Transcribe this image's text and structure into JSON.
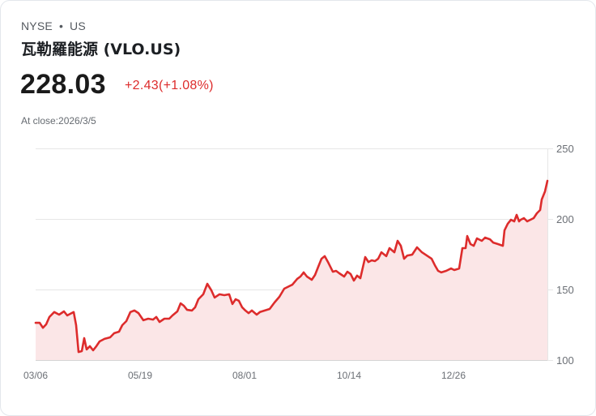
{
  "header": {
    "exchange": "NYSE",
    "separator": "•",
    "market": "US",
    "name": "瓦勒羅能源 (VLO.US)"
  },
  "quote": {
    "price": "228.03",
    "change": "+2.43(+1.08%)",
    "close_label": "At close:2026/3/5"
  },
  "colors": {
    "line": "#dd2c2c",
    "area_fill": "#fbe6e7",
    "grid": "#e6e6e6",
    "text_secondary": "#6b6f75"
  },
  "chart_data": {
    "type": "area",
    "title": "",
    "xlabel": "",
    "ylabel": "",
    "ylim": [
      100,
      250
    ],
    "y_ticks": [
      100,
      150,
      200,
      250
    ],
    "x_tick_labels": [
      "03/06",
      "05/19",
      "08/01",
      "10/14",
      "12/26"
    ],
    "grid": "horizontal",
    "legend": "none",
    "x_index_range": [
      0,
      632
    ],
    "points": [
      [
        0,
        126.4
      ],
      [
        5,
        126.4
      ],
      [
        9,
        122.9
      ],
      [
        13,
        125.3
      ],
      [
        17,
        130.5
      ],
      [
        23,
        134.0
      ],
      [
        29,
        132.2
      ],
      [
        35,
        134.5
      ],
      [
        39,
        131.6
      ],
      [
        43,
        132.8
      ],
      [
        47,
        134.0
      ],
      [
        50,
        124.7
      ],
      [
        53,
        105.7
      ],
      [
        57,
        106.3
      ],
      [
        60,
        115.5
      ],
      [
        63,
        107.5
      ],
      [
        67,
        109.8
      ],
      [
        71,
        106.9
      ],
      [
        75,
        109.8
      ],
      [
        79,
        113.2
      ],
      [
        85,
        115.0
      ],
      [
        92,
        116.1
      ],
      [
        97,
        119.0
      ],
      [
        103,
        120.1
      ],
      [
        107,
        124.7
      ],
      [
        112,
        127.6
      ],
      [
        117,
        134.0
      ],
      [
        122,
        135.1
      ],
      [
        127,
        133.3
      ],
      [
        133,
        128.2
      ],
      [
        139,
        129.3
      ],
      [
        145,
        128.7
      ],
      [
        149,
        130.5
      ],
      [
        153,
        127.0
      ],
      [
        159,
        129.3
      ],
      [
        165,
        129.3
      ],
      [
        169,
        131.6
      ],
      [
        175,
        134.5
      ],
      [
        179,
        140.2
      ],
      [
        183,
        138.5
      ],
      [
        187,
        135.6
      ],
      [
        193,
        135.1
      ],
      [
        197,
        137.4
      ],
      [
        201,
        143.1
      ],
      [
        207,
        146.6
      ],
      [
        212,
        154.0
      ],
      [
        217,
        149.4
      ],
      [
        221,
        144.3
      ],
      [
        227,
        146.6
      ],
      [
        233,
        146.0
      ],
      [
        239,
        146.6
      ],
      [
        243,
        139.7
      ],
      [
        247,
        143.1
      ],
      [
        251,
        142.0
      ],
      [
        255,
        137.4
      ],
      [
        259,
        135.1
      ],
      [
        263,
        133.3
      ],
      [
        267,
        135.1
      ],
      [
        273,
        132.2
      ],
      [
        277,
        134.0
      ],
      [
        283,
        135.1
      ],
      [
        289,
        136.2
      ],
      [
        295,
        140.8
      ],
      [
        301,
        144.8
      ],
      [
        307,
        150.6
      ],
      [
        313,
        152.3
      ],
      [
        317,
        153.4
      ],
      [
        323,
        157.5
      ],
      [
        327,
        159.2
      ],
      [
        331,
        162.1
      ],
      [
        335,
        159.2
      ],
      [
        341,
        156.9
      ],
      [
        345,
        160.3
      ],
      [
        349,
        166.1
      ],
      [
        353,
        171.8
      ],
      [
        357,
        173.6
      ],
      [
        361,
        169.5
      ],
      [
        367,
        162.6
      ],
      [
        371,
        163.2
      ],
      [
        375,
        161.5
      ],
      [
        381,
        159.2
      ],
      [
        385,
        162.6
      ],
      [
        389,
        161.0
      ],
      [
        393,
        156.3
      ],
      [
        397,
        159.8
      ],
      [
        401,
        158.0
      ],
      [
        407,
        173.0
      ],
      [
        411,
        169.5
      ],
      [
        415,
        170.7
      ],
      [
        419,
        170.1
      ],
      [
        423,
        171.8
      ],
      [
        427,
        176.4
      ],
      [
        433,
        173.6
      ],
      [
        437,
        179.3
      ],
      [
        443,
        176.4
      ],
      [
        447,
        184.5
      ],
      [
        451,
        181.0
      ],
      [
        455,
        171.8
      ],
      [
        459,
        174.1
      ],
      [
        465,
        174.7
      ],
      [
        471,
        179.9
      ],
      [
        477,
        176.4
      ],
      [
        483,
        174.1
      ],
      [
        489,
        171.8
      ],
      [
        493,
        167.2
      ],
      [
        497,
        163.2
      ],
      [
        501,
        162.1
      ],
      [
        507,
        163.2
      ],
      [
        513,
        164.9
      ],
      [
        517,
        163.8
      ],
      [
        523,
        164.9
      ],
      [
        527,
        179.3
      ],
      [
        531,
        179.3
      ],
      [
        533,
        187.9
      ],
      [
        537,
        182.2
      ],
      [
        541,
        181.0
      ],
      [
        545,
        186.2
      ],
      [
        551,
        184.5
      ],
      [
        555,
        186.8
      ],
      [
        561,
        185.6
      ],
      [
        565,
        183.3
      ],
      [
        571,
        182.2
      ],
      [
        577,
        181.0
      ],
      [
        579,
        191.9
      ],
      [
        583,
        196.6
      ],
      [
        587,
        199.4
      ],
      [
        591,
        198.3
      ],
      [
        594,
        202.9
      ],
      [
        597,
        198.3
      ],
      [
        599,
        199.4
      ],
      [
        603,
        200.6
      ],
      [
        607,
        198.3
      ],
      [
        611,
        199.4
      ],
      [
        615,
        200.6
      ],
      [
        619,
        204.0
      ],
      [
        623,
        206.3
      ],
      [
        625,
        213.8
      ],
      [
        629,
        219.5
      ],
      [
        632,
        227.0
      ]
    ]
  },
  "axes": {
    "y_labels": [
      "250",
      "200",
      "150",
      "100"
    ],
    "x_labels": [
      "03/06",
      "05/19",
      "08/01",
      "10/14",
      "12/26"
    ]
  }
}
